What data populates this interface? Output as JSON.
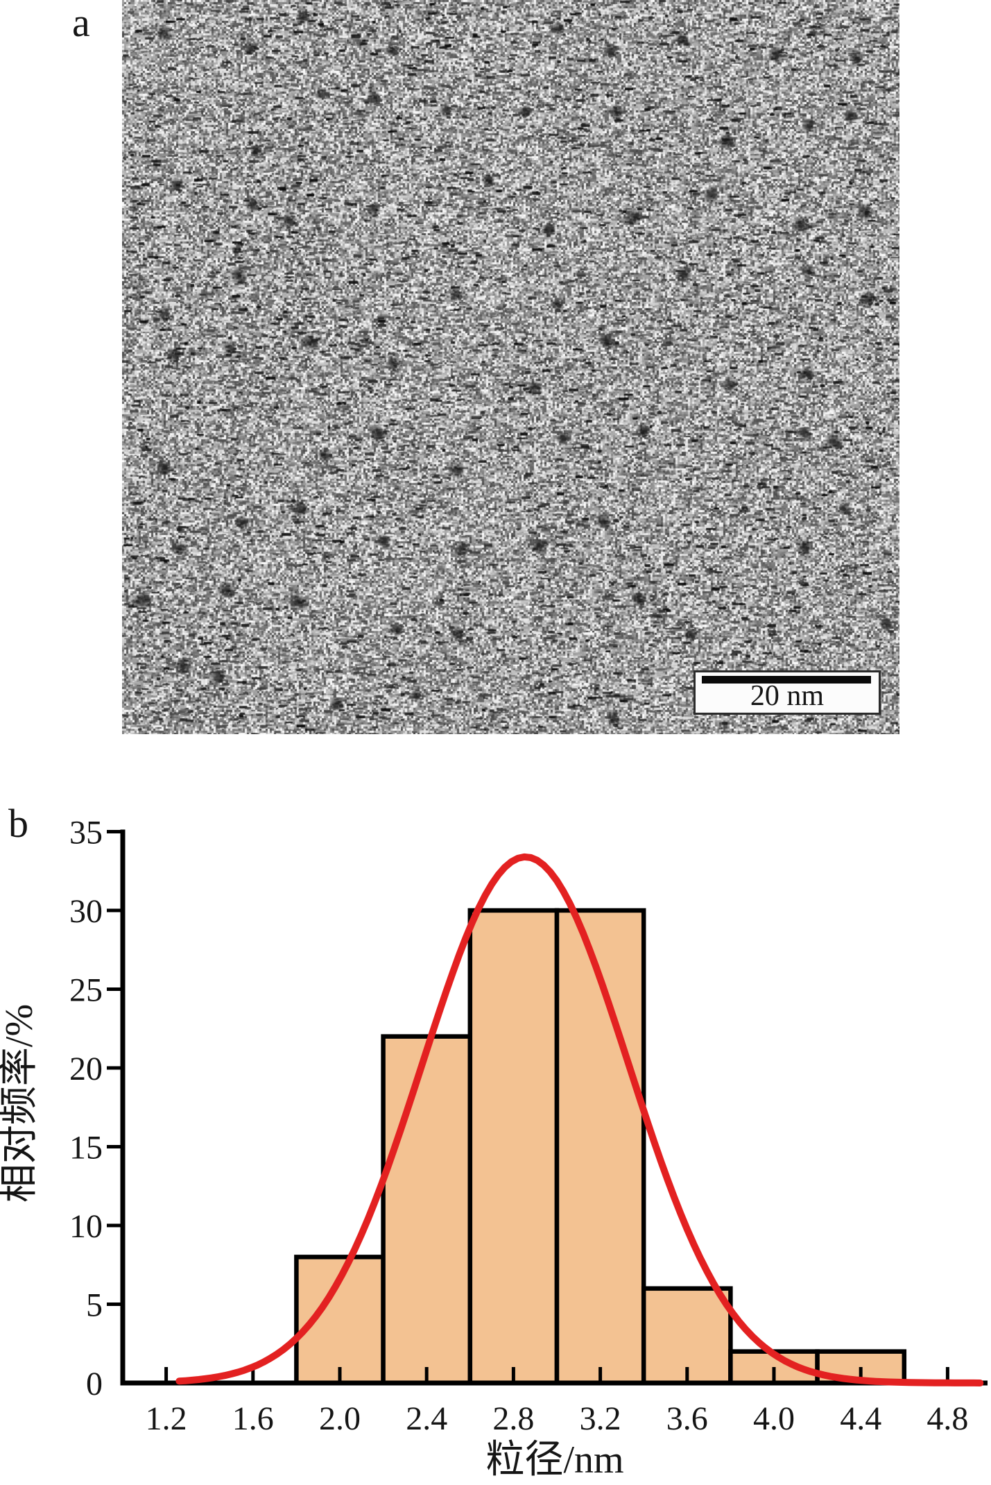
{
  "panels": {
    "a": {
      "label": "a",
      "content": "TEM micrograph of dispersed nanoparticles",
      "scale_bar": {
        "label": "20 nm"
      }
    },
    "b": {
      "label": "b"
    }
  },
  "chart_data": {
    "type": "bar",
    "title": "",
    "xlabel": "粒径/nm",
    "ylabel": "相对频率/%",
    "xlim": [
      1.0,
      5.0
    ],
    "ylim": [
      0,
      35
    ],
    "grid": false,
    "legend": null,
    "x_ticks": [
      1.2,
      1.6,
      2.0,
      2.4,
      2.8,
      3.2,
      3.6,
      4.0,
      4.4,
      4.8
    ],
    "x_tick_labels": [
      "1.2",
      "1.6",
      "2.0",
      "2.4",
      "2.8",
      "3.2",
      "3.6",
      "4.0",
      "4.4",
      "4.8"
    ],
    "y_ticks": [
      0,
      5,
      10,
      15,
      20,
      25,
      30,
      35
    ],
    "y_tick_labels": [
      "0",
      "5",
      "10",
      "15",
      "20",
      "25",
      "30",
      "35"
    ],
    "bin_width": 0.4,
    "bins": [
      {
        "x_start": 1.8,
        "x_end": 2.2,
        "value": 8
      },
      {
        "x_start": 2.2,
        "x_end": 2.6,
        "value": 22
      },
      {
        "x_start": 2.6,
        "x_end": 3.0,
        "value": 30
      },
      {
        "x_start": 3.0,
        "x_end": 3.4,
        "value": 30
      },
      {
        "x_start": 3.4,
        "x_end": 3.8,
        "value": 6
      },
      {
        "x_start": 3.8,
        "x_end": 4.2,
        "value": 2
      },
      {
        "x_start": 4.2,
        "x_end": 4.6,
        "value": 2
      }
    ],
    "fit_curve": {
      "shape": "gaussian",
      "amplitude": 33.4,
      "mean": 2.855,
      "sigma": 0.475,
      "x_start": 1.26,
      "x_end": 4.96,
      "color": "#e32121"
    },
    "colors": {
      "bar_fill": "#f3c292",
      "bar_border": "#000000",
      "axis": "#000000"
    }
  }
}
